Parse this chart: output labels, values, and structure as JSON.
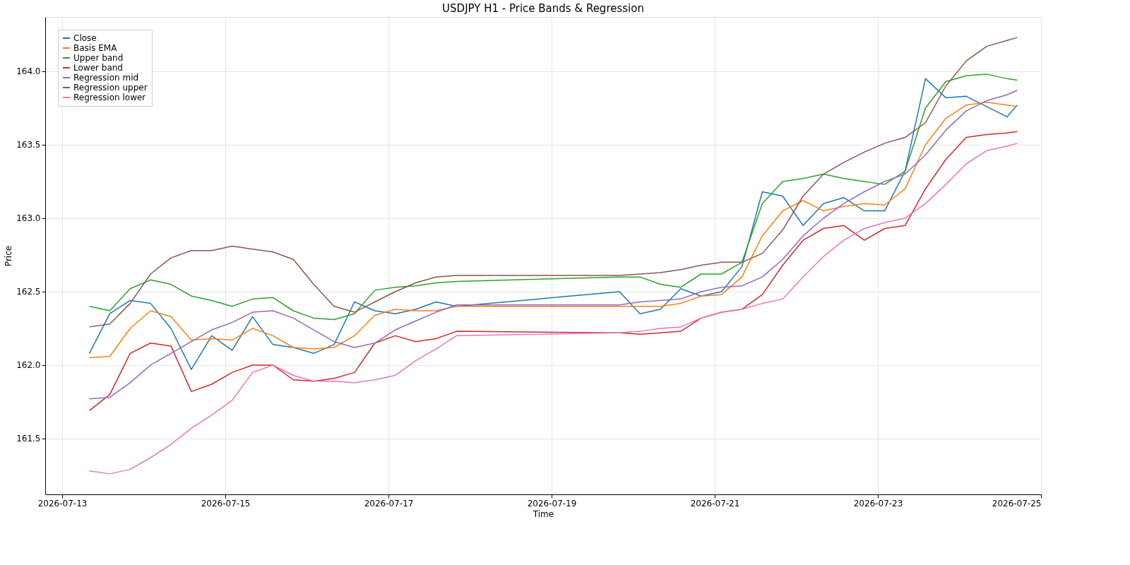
{
  "chart_data": {
    "type": "line",
    "title": "USDJPY H1 - Price Bands & Regression",
    "xlabel": "Time",
    "ylabel": "Price",
    "x": [
      "2026-07-13T08:00",
      "2026-07-13T14:00",
      "2026-07-13T20:00",
      "2026-07-14T02:00",
      "2026-07-14T08:00",
      "2026-07-14T14:00",
      "2026-07-14T20:00",
      "2026-07-15T02:00",
      "2026-07-15T08:00",
      "2026-07-15T14:00",
      "2026-07-15T20:00",
      "2026-07-16T02:00",
      "2026-07-16T08:00",
      "2026-07-16T14:00",
      "2026-07-16T20:00",
      "2026-07-17T02:00",
      "2026-07-17T08:00",
      "2026-07-17T14:00",
      "2026-07-17T20:00",
      "2026-07-19T20:00",
      "2026-07-20T02:00",
      "2026-07-20T08:00",
      "2026-07-20T14:00",
      "2026-07-20T20:00",
      "2026-07-21T02:00",
      "2026-07-21T08:00",
      "2026-07-21T14:00",
      "2026-07-21T20:00",
      "2026-07-22T02:00",
      "2026-07-22T08:00",
      "2026-07-22T14:00",
      "2026-07-22T20:00",
      "2026-07-23T02:00",
      "2026-07-23T08:00",
      "2026-07-23T14:00",
      "2026-07-23T20:00",
      "2026-07-24T02:00",
      "2026-07-24T08:00",
      "2026-07-24T14:00",
      "2026-07-24T17:00"
    ],
    "series": [
      {
        "name": "Close",
        "color": "#1f77b4",
        "values": [
          162.08,
          162.35,
          162.44,
          162.42,
          162.25,
          161.97,
          162.2,
          162.1,
          162.33,
          162.14,
          162.12,
          162.08,
          162.14,
          162.43,
          162.37,
          162.35,
          162.38,
          162.43,
          162.4,
          162.5,
          162.35,
          162.38,
          162.52,
          162.47,
          162.5,
          162.67,
          163.18,
          163.15,
          162.95,
          163.1,
          163.14,
          163.05,
          163.05,
          163.32,
          163.95,
          163.82,
          163.83,
          163.76,
          163.69,
          163.77
        ]
      },
      {
        "name": "Basis EMA",
        "color": "#ff7f0e",
        "values": [
          162.05,
          162.06,
          162.25,
          162.37,
          162.33,
          162.17,
          162.18,
          162.17,
          162.25,
          162.2,
          162.12,
          162.11,
          162.12,
          162.2,
          162.34,
          162.38,
          162.37,
          162.37,
          162.4,
          162.4,
          162.4,
          162.4,
          162.42,
          162.47,
          162.48,
          162.6,
          162.88,
          163.05,
          163.12,
          163.05,
          163.08,
          163.1,
          163.09,
          163.2,
          163.5,
          163.68,
          163.77,
          163.79,
          163.77,
          163.76
        ]
      },
      {
        "name": "Upper band",
        "color": "#2ca02c",
        "values": [
          162.4,
          162.37,
          162.52,
          162.58,
          162.55,
          162.47,
          162.44,
          162.4,
          162.45,
          162.46,
          162.37,
          162.32,
          162.31,
          162.35,
          162.51,
          162.53,
          162.54,
          162.56,
          162.57,
          162.6,
          162.6,
          162.55,
          162.53,
          162.62,
          162.62,
          162.7,
          163.1,
          163.25,
          163.27,
          163.3,
          163.27,
          163.25,
          163.23,
          163.32,
          163.75,
          163.93,
          163.97,
          163.98,
          163.95,
          163.94
        ]
      },
      {
        "name": "Lower band",
        "color": "#d62728",
        "values": [
          161.69,
          161.8,
          162.08,
          162.15,
          162.13,
          161.82,
          161.87,
          161.95,
          162.0,
          162.0,
          161.9,
          161.89,
          161.91,
          161.95,
          162.15,
          162.2,
          162.16,
          162.18,
          162.23,
          162.22,
          162.21,
          162.22,
          162.23,
          162.32,
          162.36,
          162.38,
          162.48,
          162.68,
          162.85,
          162.93,
          162.95,
          162.85,
          162.93,
          162.95,
          163.2,
          163.4,
          163.55,
          163.57,
          163.58,
          163.59
        ]
      },
      {
        "name": "Regression mid",
        "color": "#9467bd",
        "values": [
          161.77,
          161.78,
          161.88,
          162.0,
          162.08,
          162.16,
          162.24,
          162.29,
          162.36,
          162.37,
          162.32,
          162.24,
          162.16,
          162.12,
          162.15,
          162.24,
          162.3,
          162.36,
          162.41,
          162.41,
          162.43,
          162.44,
          162.45,
          162.5,
          162.53,
          162.54,
          162.6,
          162.72,
          162.88,
          163.0,
          163.1,
          163.18,
          163.25,
          163.3,
          163.43,
          163.6,
          163.73,
          163.8,
          163.84,
          163.87
        ]
      },
      {
        "name": "Regression upper",
        "color": "#8c564b",
        "values": [
          162.26,
          162.28,
          162.42,
          162.62,
          162.73,
          162.78,
          162.78,
          162.81,
          162.79,
          162.77,
          162.72,
          162.55,
          162.4,
          162.36,
          162.43,
          162.5,
          162.56,
          162.6,
          162.61,
          162.61,
          162.62,
          162.63,
          162.65,
          162.68,
          162.7,
          162.7,
          162.76,
          162.92,
          163.15,
          163.3,
          163.38,
          163.45,
          163.51,
          163.55,
          163.65,
          163.9,
          164.07,
          164.17,
          164.21,
          164.23
        ]
      },
      {
        "name": "Regression lower",
        "color": "#e377c2",
        "values": [
          161.28,
          161.26,
          161.29,
          161.37,
          161.46,
          161.57,
          161.66,
          161.76,
          161.95,
          162.0,
          161.93,
          161.89,
          161.89,
          161.88,
          161.9,
          161.93,
          162.03,
          162.11,
          162.2,
          162.22,
          162.23,
          162.25,
          162.26,
          162.32,
          162.36,
          162.38,
          162.42,
          162.45,
          162.6,
          162.74,
          162.85,
          162.93,
          162.97,
          163.0,
          163.1,
          163.23,
          163.37,
          163.46,
          163.49,
          163.51
        ]
      }
    ],
    "xlim": [
      "2026-07-12T19:00",
      "2026-07-25T00:00"
    ],
    "xticks": [
      "2026-07-13",
      "2026-07-15",
      "2026-07-17",
      "2026-07-19",
      "2026-07-21",
      "2026-07-23",
      "2026-07-25"
    ],
    "ylim": [
      161.12,
      164.37
    ],
    "yticks": [
      161.5,
      {
        "value": 162,
        "label": "162.0"
      },
      162.5,
      {
        "value": 163,
        "label": "163.0"
      },
      163.5,
      {
        "value": 164,
        "label": "164.0"
      }
    ],
    "grid": true,
    "legend": "top left",
    "marker": "none",
    "line_style": "solid"
  }
}
